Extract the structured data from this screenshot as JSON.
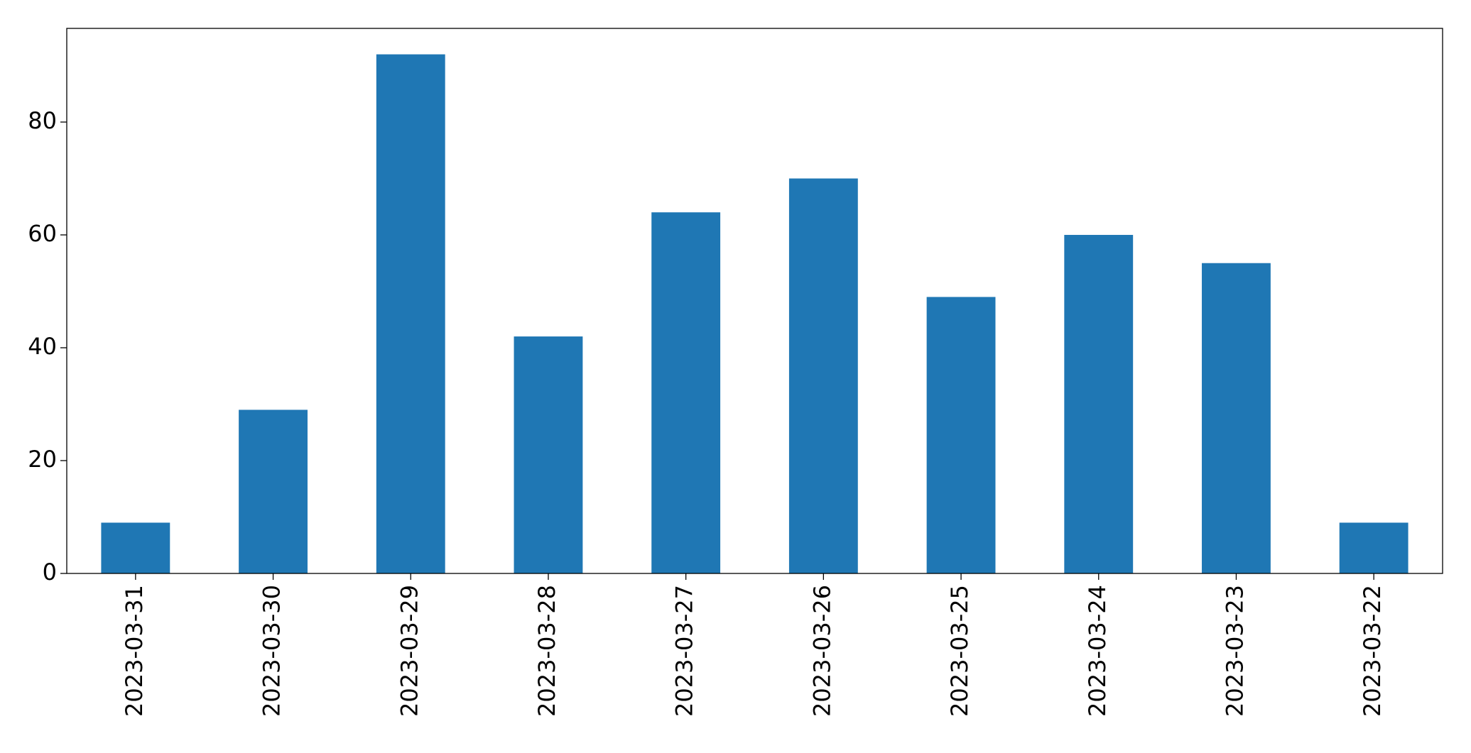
{
  "chart_data": {
    "type": "bar",
    "categories": [
      "2023-03-31",
      "2023-03-30",
      "2023-03-29",
      "2023-03-28",
      "2023-03-27",
      "2023-03-26",
      "2023-03-25",
      "2023-03-24",
      "2023-03-23",
      "2023-03-22"
    ],
    "values": [
      9,
      29,
      92,
      42,
      64,
      70,
      49,
      60,
      55,
      9
    ],
    "color": "#1f77b4",
    "ylim": [
      0,
      96.6
    ],
    "yticks": [
      0,
      20,
      40,
      60,
      80
    ],
    "grid": false
  }
}
